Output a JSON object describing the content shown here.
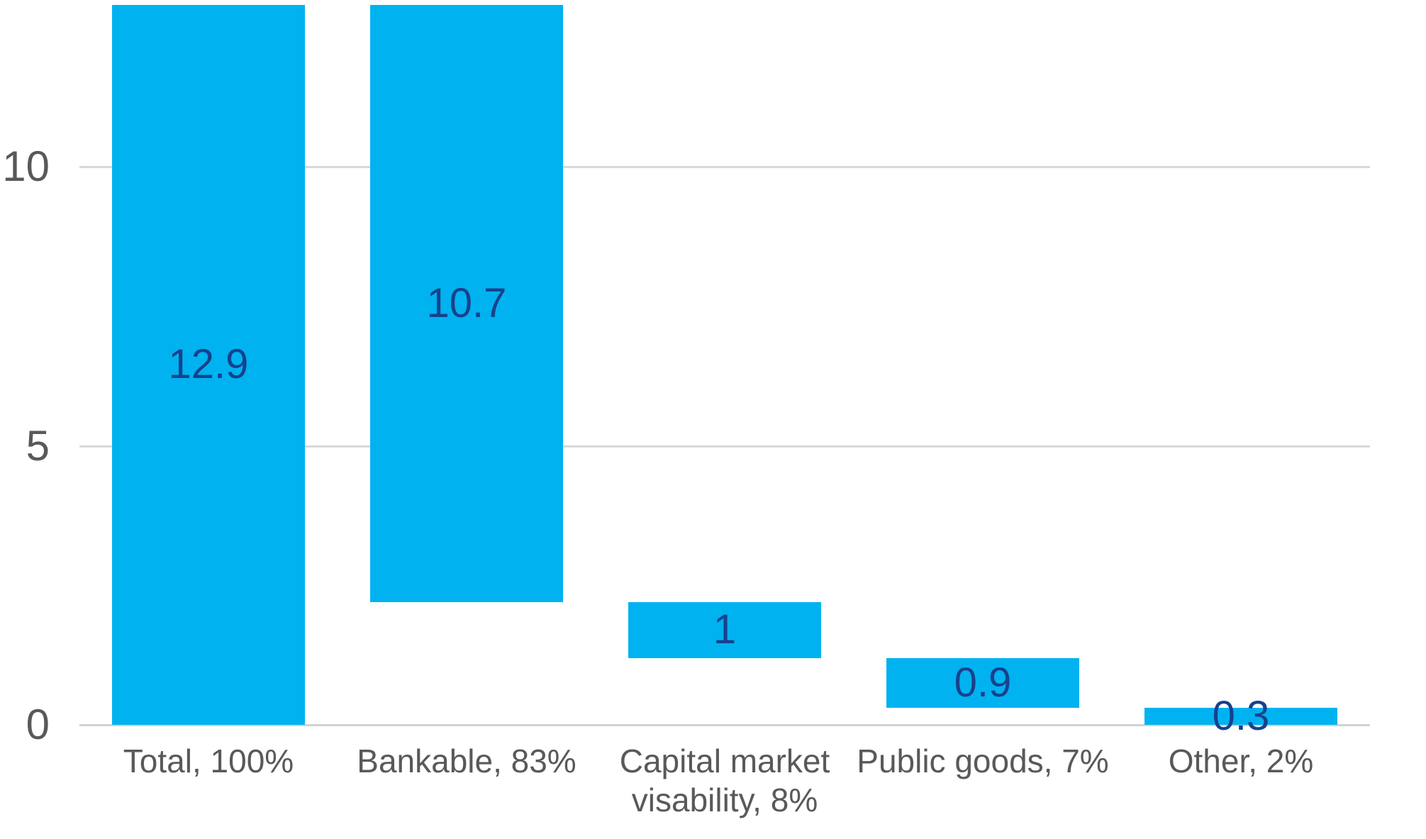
{
  "chart_data": {
    "type": "bar",
    "subtype": "waterfall",
    "title": "",
    "xlabel": "",
    "ylabel": "",
    "grid": true,
    "legend": false,
    "categories": [
      "Total, 100%",
      "Bankable, 83%",
      "Capital market visability, 8%",
      "Public goods, 7%",
      "Other, 2%"
    ],
    "bars": [
      {
        "category": "Total, 100%",
        "value": 12.9,
        "label": "12.9",
        "start": 0,
        "end": 12.9
      },
      {
        "category": "Bankable, 83%",
        "value": 10.7,
        "label": "10.7",
        "start": 2.2,
        "end": 12.9
      },
      {
        "category": "Capital market visability, 8%",
        "value": 1,
        "label": "1",
        "start": 1.2,
        "end": 2.2
      },
      {
        "category": "Public goods, 7%",
        "value": 0.9,
        "label": "0.9",
        "start": 0.3,
        "end": 1.2
      },
      {
        "category": "Other, 2%",
        "value": 0.3,
        "label": "0.3",
        "start": 0,
        "end": 0.3
      }
    ],
    "y_axis": {
      "ticks": [
        0,
        5,
        10
      ],
      "tick_labels": [
        "0",
        "5",
        "10"
      ],
      "range": [
        0,
        13
      ]
    },
    "colors": {
      "bar_fill": "#00B2F0",
      "data_label": "#17418C",
      "axis_label": "#595959",
      "gridline": "#D9D9D9",
      "axis_line": "#D2D2D2"
    }
  }
}
